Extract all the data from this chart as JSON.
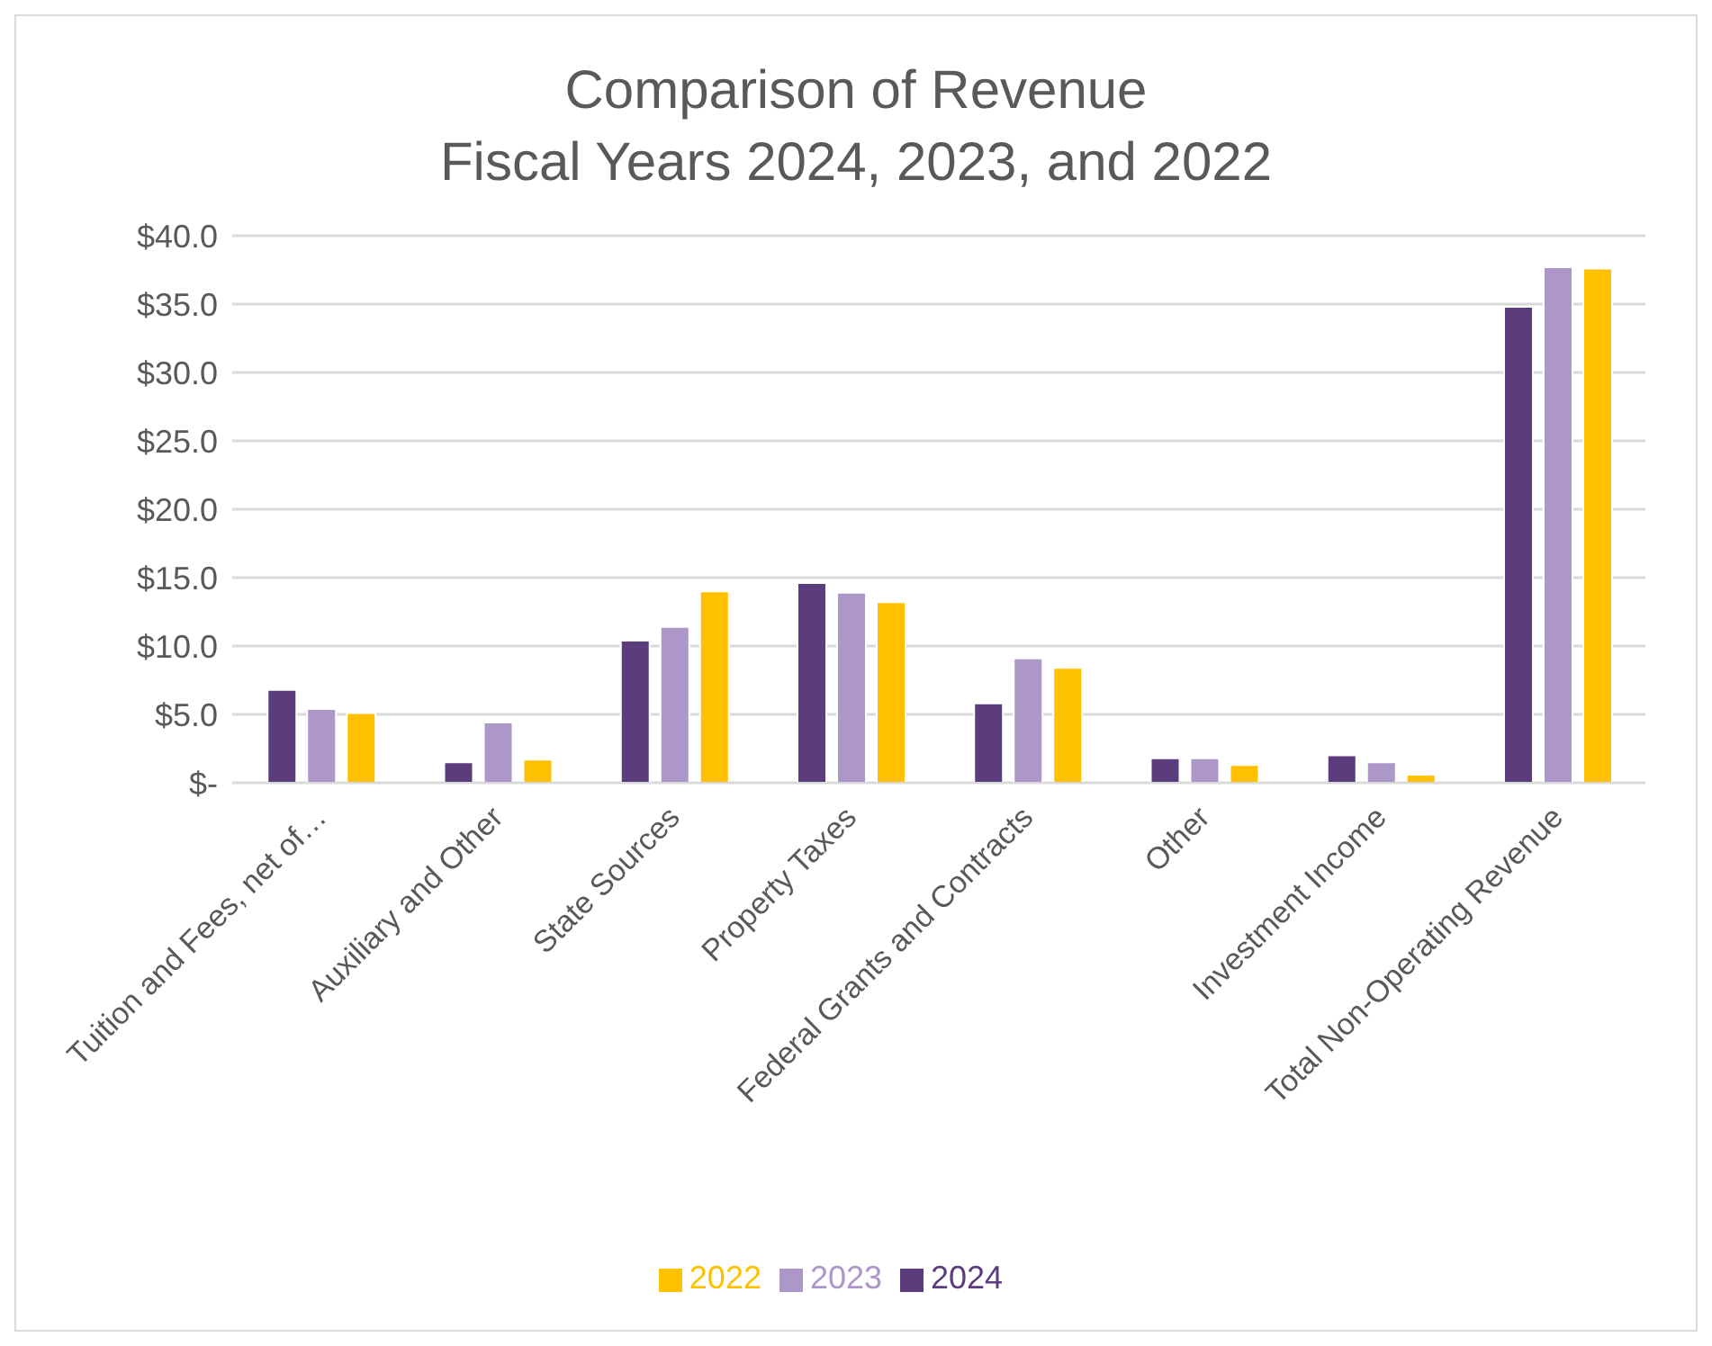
{
  "chart_data": {
    "type": "bar",
    "title": "Comparison of Revenue",
    "subtitle": "Fiscal Years 2024, 2023, and 2022",
    "categories": [
      "Tuition and Fees, net of…",
      "Auxiliary and Other",
      "State Sources",
      "Property Taxes",
      "Federal Grants and Contracts",
      "Other",
      "Investment Income",
      "Total Non-Operating Revenue"
    ],
    "series": [
      {
        "name": "2024",
        "color": "#5b3d7e",
        "values": [
          6.8,
          1.5,
          10.4,
          14.6,
          5.8,
          1.8,
          2.0,
          34.8
        ]
      },
      {
        "name": "2023",
        "color": "#ad96c8",
        "values": [
          5.4,
          4.4,
          11.4,
          13.9,
          9.1,
          1.8,
          1.5,
          37.7
        ]
      },
      {
        "name": "2022",
        "color": "#ffc000",
        "values": [
          5.1,
          1.7,
          14.0,
          13.2,
          8.4,
          1.3,
          0.6,
          37.6
        ]
      }
    ],
    "ylim": [
      0,
      40
    ],
    "yticks": [
      {
        "value": 0,
        "label": "$-"
      },
      {
        "value": 5,
        "label": "$5.0"
      },
      {
        "value": 10,
        "label": "$10.0"
      },
      {
        "value": 15,
        "label": "$15.0"
      },
      {
        "value": 20,
        "label": "$20.0"
      },
      {
        "value": 25,
        "label": "$25.0"
      },
      {
        "value": 30,
        "label": "$30.0"
      },
      {
        "value": 35,
        "label": "$35.0"
      },
      {
        "value": 40,
        "label": "$40.0"
      }
    ],
    "grid": "y",
    "legend": "bottom"
  }
}
